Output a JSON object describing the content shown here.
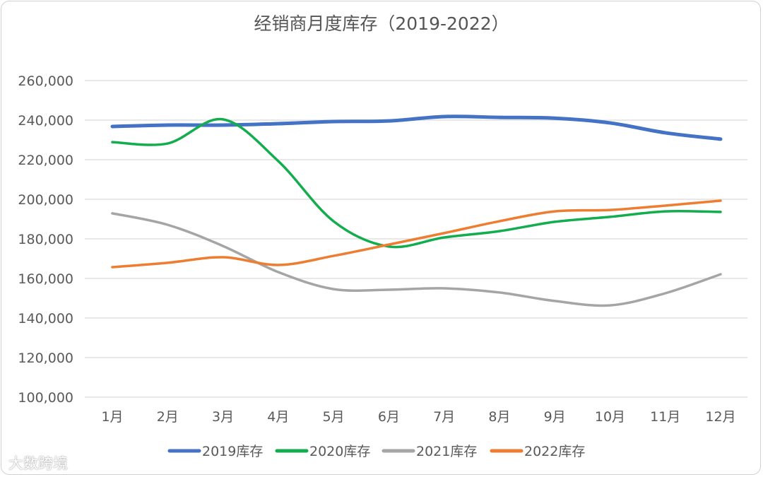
{
  "chart_data": {
    "type": "line",
    "title": "经销商月度库存（2019-2022）",
    "xlabel": "",
    "ylabel": "",
    "categories": [
      "1月",
      "2月",
      "3月",
      "4月",
      "5月",
      "6月",
      "7月",
      "8月",
      "9月",
      "10月",
      "11月",
      "12月"
    ],
    "ylim": [
      100000,
      260000
    ],
    "yticks": [
      100000,
      120000,
      140000,
      160000,
      180000,
      200000,
      220000,
      240000,
      260000
    ],
    "ytick_labels": [
      "100,000",
      "120,000",
      "140,000",
      "160,000",
      "180,000",
      "200,000",
      "220,000",
      "240,000",
      "260,000"
    ],
    "grid": true,
    "smooth": true,
    "legend_position": "bottom",
    "series": [
      {
        "name": "2019库存",
        "color": "#4472C4",
        "values": [
          236800,
          237500,
          237500,
          238200,
          239300,
          239600,
          241800,
          241400,
          241000,
          238600,
          233600,
          230400
        ]
      },
      {
        "name": "2020库存",
        "color": "#13AD4F",
        "values": [
          228900,
          228200,
          240400,
          219300,
          188900,
          176100,
          180700,
          183900,
          188600,
          191100,
          193900,
          193600
        ]
      },
      {
        "name": "2021库存",
        "color": "#A5A5A5",
        "values": [
          192900,
          187100,
          176400,
          163200,
          154600,
          154300,
          155000,
          152900,
          148600,
          146400,
          152500,
          162100
        ]
      },
      {
        "name": "2022库存",
        "color": "#ED7D31",
        "values": [
          165700,
          167900,
          170700,
          166800,
          171400,
          177100,
          182900,
          188900,
          193900,
          194600,
          196800,
          199300
        ]
      }
    ]
  },
  "watermark": "大数跨境"
}
